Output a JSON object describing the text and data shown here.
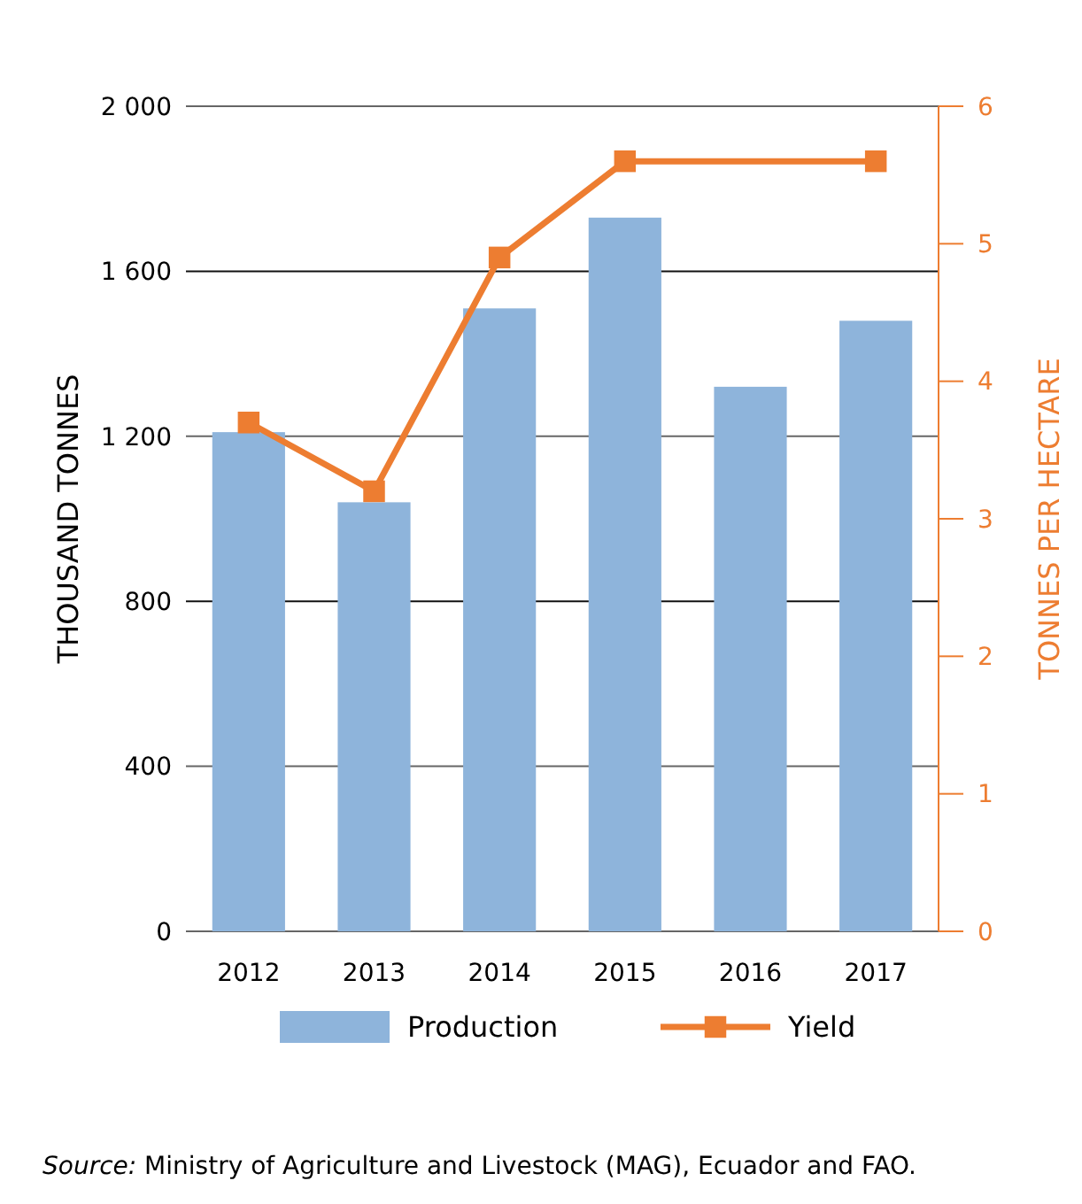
{
  "chart_data": {
    "type": "bar",
    "categories": [
      "2012",
      "2013",
      "2014",
      "2015",
      "2016",
      "2017"
    ],
    "series": [
      {
        "name": "Production",
        "color": "#8eb4db",
        "values": [
          1210,
          1040,
          1510,
          1730,
          1320,
          1480
        ]
      },
      {
        "name": "Yield",
        "type": "line",
        "axis": "y2",
        "color": "#ed7d31",
        "values": [
          3.7,
          3.2,
          4.9,
          5.6,
          null,
          5.6
        ]
      }
    ],
    "ylabel": "THOUSAND TONNES",
    "y2label": "TONNES PER HECTARE",
    "ylim": [
      0,
      2000
    ],
    "yticks": [
      0,
      {
        "value": 400,
        "label": "400"
      },
      {
        "value": 800,
        "label": "800"
      },
      {
        "value": 1200,
        "label": "1 200"
      },
      {
        "value": 1600,
        "label": "1 600"
      },
      {
        "value": 2000,
        "label": "2 000"
      }
    ],
    "y2lim": [
      0,
      6
    ],
    "y2ticks": [
      0,
      1,
      2,
      3,
      4,
      5,
      6
    ],
    "grid": "y",
    "legend": "bottom",
    "marker": "square",
    "annotations": [
      "Source: Ministry of Agriculture and Livestock (MAG), Ecuador and FAO."
    ]
  }
}
